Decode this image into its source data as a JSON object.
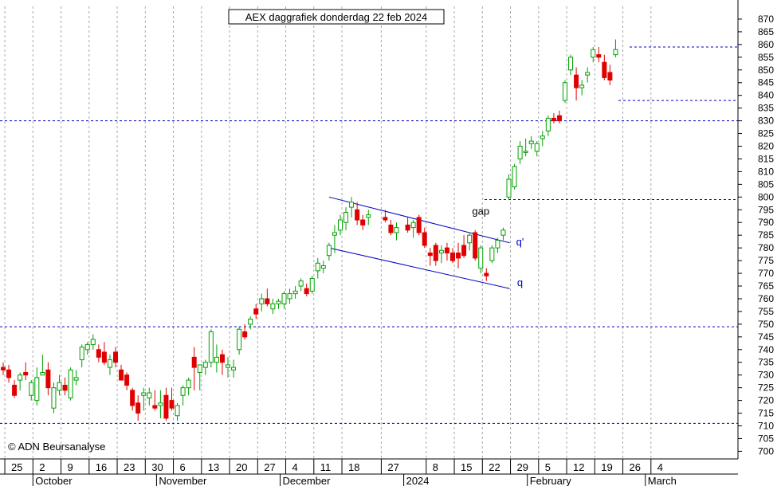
{
  "chart_data": {
    "type": "candlestick",
    "title": "AEX daggrafiek donderdag 22 feb 2024",
    "watermark": "© ADN Beursanalyse",
    "ylim": [
      697,
      875
    ],
    "y_ticks": [
      700,
      705,
      710,
      715,
      720,
      725,
      730,
      735,
      740,
      745,
      750,
      755,
      760,
      765,
      770,
      775,
      780,
      785,
      790,
      795,
      800,
      805,
      810,
      815,
      820,
      825,
      830,
      835,
      840,
      845,
      850,
      855,
      860,
      865,
      870
    ],
    "x_ticks": [
      "25",
      "2",
      "9",
      "16",
      "23",
      "30",
      "6",
      "13",
      "20",
      "27",
      "4",
      "11",
      "18",
      "27",
      "8",
      "15",
      "22",
      "29",
      "5",
      "12",
      "19",
      "26",
      "4"
    ],
    "months": [
      "October",
      "November",
      "December",
      "2024",
      "February",
      "March"
    ],
    "grid": true,
    "colors": {
      "up": "#00a000",
      "down": "#e00000",
      "level": "#0000c0",
      "channel": "#0000c0",
      "annotation": "#0000c0"
    },
    "horizontal_levels": [
      711,
      749,
      799,
      830,
      838,
      859
    ],
    "annotations": [
      {
        "text": "gap",
        "x": "2024-01-19",
        "y": 793
      },
      {
        "text": "q'",
        "x": "2024-01-26",
        "y": 781
      },
      {
        "text": "q",
        "x": "2024-01-26",
        "y": 765
      }
    ],
    "channel": [
      {
        "from": [
          "2023-12-13",
          800
        ],
        "to": [
          "2024-01-25",
          782
        ]
      },
      {
        "from": [
          "2023-12-13",
          780
        ],
        "to": [
          "2024-01-25",
          764
        ]
      }
    ],
    "candles": [
      {
        "date": "2023-09-22",
        "open": 733,
        "high": 735,
        "low": 730,
        "close": 732
      },
      {
        "date": "2023-09-25",
        "open": 732,
        "high": 734,
        "low": 727,
        "close": 729
      },
      {
        "date": "2023-09-26",
        "open": 726,
        "high": 728,
        "low": 721,
        "close": 722
      },
      {
        "date": "2023-09-27",
        "open": 728,
        "high": 731,
        "low": 724,
        "close": 730
      },
      {
        "date": "2023-09-28",
        "open": 731,
        "high": 735,
        "low": 728,
        "close": 730
      },
      {
        "date": "2023-09-29",
        "open": 722,
        "high": 728,
        "low": 720,
        "close": 727
      },
      {
        "date": "2023-10-02",
        "open": 720,
        "high": 733,
        "low": 718,
        "close": 729
      },
      {
        "date": "2023-10-03",
        "open": 730,
        "high": 738,
        "low": 730,
        "close": 731
      },
      {
        "date": "2023-10-04",
        "open": 732,
        "high": 735,
        "low": 722,
        "close": 725
      },
      {
        "date": "2023-10-05",
        "open": 717,
        "high": 727,
        "low": 715,
        "close": 725
      },
      {
        "date": "2023-10-06",
        "open": 724,
        "high": 730,
        "low": 722,
        "close": 727
      },
      {
        "date": "2023-10-09",
        "open": 726,
        "high": 729,
        "low": 722,
        "close": 724
      },
      {
        "date": "2023-10-10",
        "open": 721,
        "high": 733,
        "low": 720,
        "close": 732
      },
      {
        "date": "2023-10-11",
        "open": 728,
        "high": 732,
        "low": 726,
        "close": 729
      },
      {
        "date": "2023-10-12",
        "open": 736,
        "high": 742,
        "low": 733,
        "close": 741
      },
      {
        "date": "2023-10-13",
        "open": 740,
        "high": 743,
        "low": 738,
        "close": 742
      },
      {
        "date": "2023-10-16",
        "open": 742,
        "high": 746,
        "low": 740,
        "close": 744
      },
      {
        "date": "2023-10-17",
        "open": 740,
        "high": 742,
        "low": 735,
        "close": 737
      },
      {
        "date": "2023-10-18",
        "open": 739,
        "high": 743,
        "low": 734,
        "close": 735
      },
      {
        "date": "2023-10-19",
        "open": 733,
        "high": 738,
        "low": 730,
        "close": 736
      },
      {
        "date": "2023-10-20",
        "open": 739,
        "high": 741,
        "low": 733,
        "close": 735
      },
      {
        "date": "2023-10-23",
        "open": 732,
        "high": 734,
        "low": 728,
        "close": 728
      },
      {
        "date": "2023-10-24",
        "open": 730,
        "high": 731,
        "low": 724,
        "close": 726
      },
      {
        "date": "2023-10-25",
        "open": 724,
        "high": 725,
        "low": 716,
        "close": 718
      },
      {
        "date": "2023-10-26",
        "open": 719,
        "high": 722,
        "low": 712,
        "close": 715
      },
      {
        "date": "2023-10-27",
        "open": 722,
        "high": 725,
        "low": 716,
        "close": 723
      },
      {
        "date": "2023-10-30",
        "open": 721,
        "high": 725,
        "low": 718,
        "close": 723
      },
      {
        "date": "2023-10-31",
        "open": 718,
        "high": 724,
        "low": 716,
        "close": 717
      },
      {
        "date": "2023-11-01",
        "open": 718,
        "high": 724,
        "low": 713,
        "close": 719
      },
      {
        "date": "2023-11-02",
        "open": 722,
        "high": 725,
        "low": 712,
        "close": 713
      },
      {
        "date": "2023-11-03",
        "open": 720,
        "high": 725,
        "low": 716,
        "close": 717
      },
      {
        "date": "2023-11-06",
        "open": 714,
        "high": 719,
        "low": 712,
        "close": 718
      },
      {
        "date": "2023-11-07",
        "open": 722,
        "high": 726,
        "low": 718,
        "close": 725
      },
      {
        "date": "2023-11-08",
        "open": 725,
        "high": 729,
        "low": 722,
        "close": 728
      },
      {
        "date": "2023-11-09",
        "open": 737,
        "high": 741,
        "low": 724,
        "close": 733
      },
      {
        "date": "2023-11-10",
        "open": 731,
        "high": 734,
        "low": 724,
        "close": 734
      },
      {
        "date": "2023-11-13",
        "open": 733,
        "high": 736,
        "low": 730,
        "close": 735
      },
      {
        "date": "2023-11-14",
        "open": 735,
        "high": 748,
        "low": 733,
        "close": 747
      },
      {
        "date": "2023-11-15",
        "open": 735,
        "high": 742,
        "low": 731,
        "close": 737
      },
      {
        "date": "2023-11-16",
        "open": 738,
        "high": 740,
        "low": 730,
        "close": 735
      },
      {
        "date": "2023-11-17",
        "open": 733,
        "high": 737,
        "low": 729,
        "close": 734
      },
      {
        "date": "2023-11-20",
        "open": 732,
        "high": 736,
        "low": 729,
        "close": 733
      },
      {
        "date": "2023-11-21",
        "open": 740,
        "high": 749,
        "low": 738,
        "close": 748
      },
      {
        "date": "2023-11-22",
        "open": 747,
        "high": 750,
        "low": 744,
        "close": 745
      },
      {
        "date": "2023-11-23",
        "open": 750,
        "high": 753,
        "low": 748,
        "close": 752
      },
      {
        "date": "2023-11-24",
        "open": 756,
        "high": 758,
        "low": 752,
        "close": 754
      },
      {
        "date": "2023-11-27",
        "open": 758,
        "high": 762,
        "low": 755,
        "close": 760
      },
      {
        "date": "2023-11-28",
        "open": 760,
        "high": 764,
        "low": 757,
        "close": 758
      },
      {
        "date": "2023-11-29",
        "open": 756,
        "high": 760,
        "low": 754,
        "close": 758
      },
      {
        "date": "2023-11-30",
        "open": 758,
        "high": 760,
        "low": 756,
        "close": 759
      },
      {
        "date": "2023-12-01",
        "open": 758,
        "high": 763,
        "low": 756,
        "close": 762
      },
      {
        "date": "2023-12-04",
        "open": 760,
        "high": 764,
        "low": 758,
        "close": 762
      },
      {
        "date": "2023-12-05",
        "open": 762,
        "high": 765,
        "low": 760,
        "close": 763
      },
      {
        "date": "2023-12-06",
        "open": 765,
        "high": 768,
        "low": 763,
        "close": 767
      },
      {
        "date": "2023-12-07",
        "open": 764,
        "high": 766,
        "low": 761,
        "close": 762
      },
      {
        "date": "2023-12-08",
        "open": 763,
        "high": 769,
        "low": 762,
        "close": 768
      },
      {
        "date": "2023-12-11",
        "open": 771,
        "high": 776,
        "low": 768,
        "close": 774
      },
      {
        "date": "2023-12-12",
        "open": 772,
        "high": 775,
        "low": 770,
        "close": 773
      },
      {
        "date": "2023-12-13",
        "open": 777,
        "high": 782,
        "low": 775,
        "close": 781
      },
      {
        "date": "2023-12-14",
        "open": 785,
        "high": 789,
        "low": 778,
        "close": 786
      },
      {
        "date": "2023-12-15",
        "open": 787,
        "high": 793,
        "low": 785,
        "close": 791
      },
      {
        "date": "2023-12-18",
        "open": 790,
        "high": 796,
        "low": 787,
        "close": 794
      },
      {
        "date": "2023-12-19",
        "open": 796,
        "high": 800,
        "low": 792,
        "close": 798
      },
      {
        "date": "2023-12-20",
        "open": 795,
        "high": 798,
        "low": 789,
        "close": 791
      },
      {
        "date": "2023-12-21",
        "open": 791,
        "high": 793,
        "low": 787,
        "close": 789
      },
      {
        "date": "2023-12-22",
        "open": 792,
        "high": 795,
        "low": 789,
        "close": 793
      },
      {
        "date": "2023-12-27",
        "open": 792,
        "high": 795,
        "low": 790,
        "close": 791
      },
      {
        "date": "2023-12-28",
        "open": 789,
        "high": 791,
        "low": 785,
        "close": 786
      },
      {
        "date": "2023-12-29",
        "open": 786,
        "high": 790,
        "low": 783,
        "close": 788
      },
      {
        "date": "2024-01-02",
        "open": 789,
        "high": 792,
        "low": 786,
        "close": 787
      },
      {
        "date": "2024-01-03",
        "open": 788,
        "high": 791,
        "low": 784,
        "close": 790
      },
      {
        "date": "2024-01-04",
        "open": 792,
        "high": 793,
        "low": 785,
        "close": 786
      },
      {
        "date": "2024-01-05",
        "open": 786,
        "high": 788,
        "low": 780,
        "close": 781
      },
      {
        "date": "2024-01-08",
        "open": 778,
        "high": 780,
        "low": 773,
        "close": 777
      },
      {
        "date": "2024-01-09",
        "open": 781,
        "high": 782,
        "low": 773,
        "close": 775
      },
      {
        "date": "2024-01-10",
        "open": 778,
        "high": 781,
        "low": 774,
        "close": 779
      },
      {
        "date": "2024-01-11",
        "open": 780,
        "high": 782,
        "low": 775,
        "close": 778
      },
      {
        "date": "2024-01-12",
        "open": 778,
        "high": 780,
        "low": 774,
        "close": 775
      },
      {
        "date": "2024-01-15",
        "open": 778,
        "high": 782,
        "low": 772,
        "close": 776
      },
      {
        "date": "2024-01-16",
        "open": 781,
        "high": 785,
        "low": 776,
        "close": 777
      },
      {
        "date": "2024-01-17",
        "open": 782,
        "high": 786,
        "low": 779,
        "close": 785
      },
      {
        "date": "2024-01-18",
        "open": 786,
        "high": 787,
        "low": 775,
        "close": 776
      },
      {
        "date": "2024-01-19",
        "open": 772,
        "high": 781,
        "low": 770,
        "close": 780
      },
      {
        "date": "2024-01-22",
        "open": 770,
        "high": 772,
        "low": 767,
        "close": 769
      },
      {
        "date": "2024-01-23",
        "open": 775,
        "high": 781,
        "low": 774,
        "close": 780
      },
      {
        "date": "2024-01-24",
        "open": 780,
        "high": 784,
        "low": 778,
        "close": 783
      },
      {
        "date": "2024-01-25",
        "open": 785,
        "high": 788,
        "low": 783,
        "close": 787
      },
      {
        "date": "2024-01-26",
        "open": 800,
        "high": 809,
        "low": 799,
        "close": 807
      },
      {
        "date": "2024-01-29",
        "open": 804,
        "high": 813,
        "low": 803,
        "close": 812
      },
      {
        "date": "2024-01-30",
        "open": 815,
        "high": 822,
        "low": 813,
        "close": 820
      },
      {
        "date": "2024-01-31",
        "open": 818,
        "high": 823,
        "low": 816,
        "close": 818
      },
      {
        "date": "2024-02-01",
        "open": 821,
        "high": 824,
        "low": 819,
        "close": 822
      },
      {
        "date": "2024-02-02",
        "open": 818,
        "high": 822,
        "low": 816,
        "close": 821
      },
      {
        "date": "2024-02-05",
        "open": 823,
        "high": 826,
        "low": 820,
        "close": 824
      },
      {
        "date": "2024-02-06",
        "open": 826,
        "high": 832,
        "low": 824,
        "close": 831
      },
      {
        "date": "2024-02-07",
        "open": 831,
        "high": 833,
        "low": 829,
        "close": 830
      },
      {
        "date": "2024-02-08",
        "open": 832,
        "high": 834,
        "low": 829,
        "close": 830
      },
      {
        "date": "2024-02-09",
        "open": 838,
        "high": 846,
        "low": 837,
        "close": 845
      },
      {
        "date": "2024-02-12",
        "open": 850,
        "high": 856,
        "low": 848,
        "close": 855
      },
      {
        "date": "2024-02-13",
        "open": 848,
        "high": 851,
        "low": 838,
        "close": 843
      },
      {
        "date": "2024-02-14",
        "open": 843,
        "high": 846,
        "low": 840,
        "close": 844
      },
      {
        "date": "2024-02-15",
        "open": 848,
        "high": 851,
        "low": 845,
        "close": 849
      },
      {
        "date": "2024-02-16",
        "open": 855,
        "high": 859,
        "low": 853,
        "close": 858
      },
      {
        "date": "2024-02-19",
        "open": 856,
        "high": 859,
        "low": 853,
        "close": 855
      },
      {
        "date": "2024-02-20",
        "open": 853,
        "high": 856,
        "low": 846,
        "close": 847
      },
      {
        "date": "2024-02-21",
        "open": 849,
        "high": 852,
        "low": 844,
        "close": 846
      },
      {
        "date": "2024-02-22",
        "open": 856,
        "high": 862,
        "low": 855,
        "close": 858
      }
    ]
  }
}
